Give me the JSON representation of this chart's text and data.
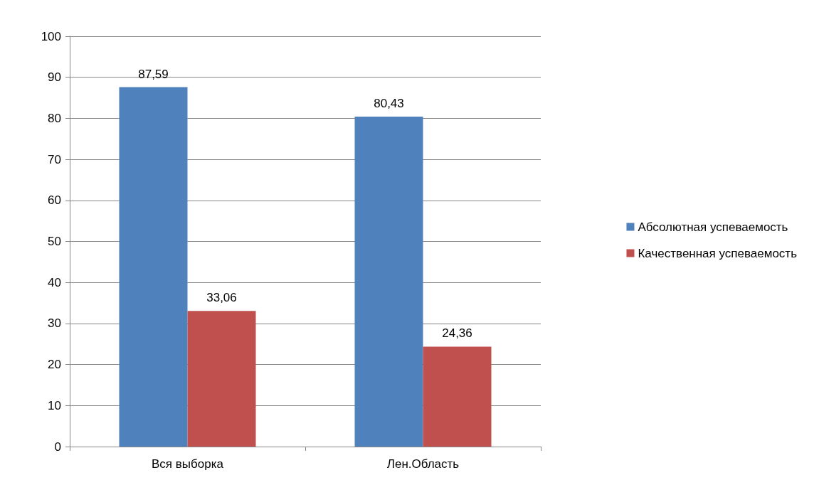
{
  "chart_data": {
    "type": "bar",
    "categories": [
      "Вся выборка",
      "Лен.Область"
    ],
    "series": [
      {
        "name": "Абсолютная успеваемость",
        "color": "#4f81bd",
        "values": [
          87.59,
          80.43
        ],
        "value_labels": [
          "87,59",
          "80,43"
        ]
      },
      {
        "name": "Качественная успеваемость",
        "color": "#c0504d",
        "values": [
          33.06,
          24.36
        ],
        "value_labels": [
          "33,06",
          "24,36"
        ]
      }
    ],
    "ylim": [
      0,
      100
    ],
    "yticks": [
      0,
      10,
      20,
      30,
      40,
      50,
      60,
      70,
      80,
      90,
      100
    ],
    "grid": "y",
    "legend": "right"
  }
}
